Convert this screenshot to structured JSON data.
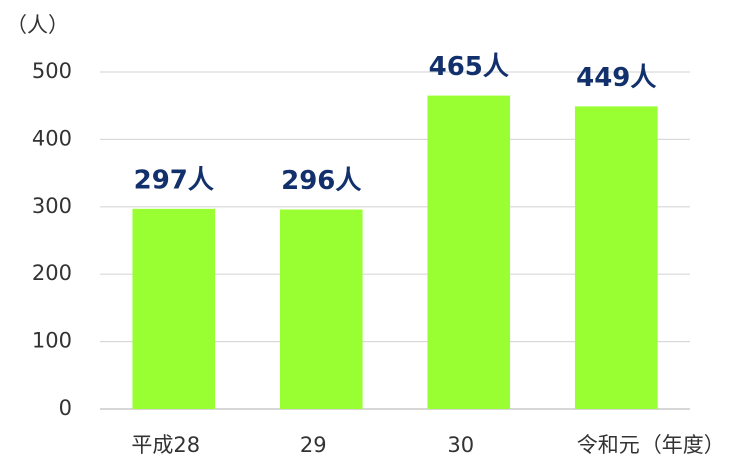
{
  "chart_data": {
    "type": "bar",
    "y_label": "（人）",
    "x_label": "（年度）",
    "categories": [
      "平成28",
      "29",
      "30",
      "令和元"
    ],
    "values": [
      297,
      296,
      465,
      449
    ],
    "value_labels": [
      "297人",
      "296人",
      "465人",
      "449人"
    ],
    "color": "#99ff33",
    "ylim": [
      0,
      500
    ],
    "yticks": [
      0,
      100,
      200,
      300,
      400,
      500
    ],
    "grid": true
  }
}
